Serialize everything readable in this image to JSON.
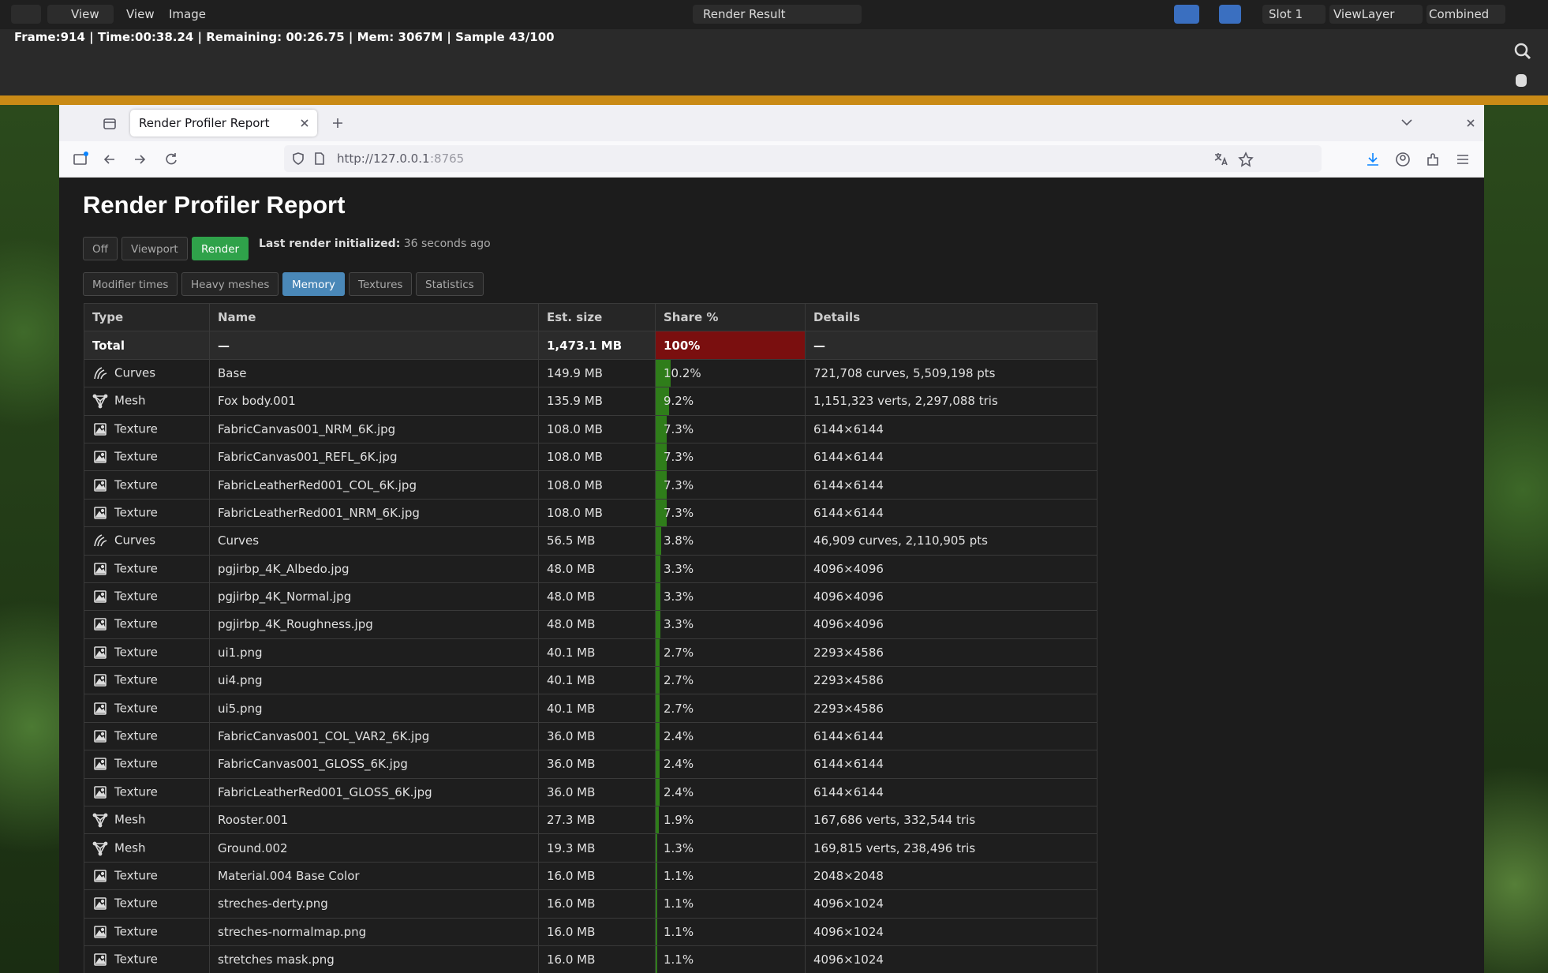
{
  "blender": {
    "menus": [
      "View",
      "View",
      "Image"
    ],
    "image_name": "Render Result",
    "slot": "Slot 1",
    "view_layer": "ViewLayer",
    "pass": "Combined",
    "status": "Frame:914 | Time:00:38.24 | Remaining: 00:26.75 | Mem: 3067M | Sample 43/100"
  },
  "browser": {
    "tab_title": "Render Profiler Report",
    "url_host": "http://127.0.0.1",
    "url_port": ":8765"
  },
  "page": {
    "title": "Render Profiler Report",
    "modes": [
      "Off",
      "Viewport",
      "Render"
    ],
    "active_mode": 2,
    "last_render_label": "Last render initialized:",
    "last_render_value": "36 seconds ago",
    "tabs": [
      "Modifier times",
      "Heavy meshes",
      "Memory",
      "Textures",
      "Statistics"
    ],
    "active_tab": 2
  },
  "table": {
    "headers": [
      "Type",
      "Name",
      "Est. size",
      "Share %",
      "Details"
    ],
    "total": {
      "type": "Total",
      "name": "—",
      "size": "1,473.1 MB",
      "share": 100,
      "share_label": "100%",
      "details": "—"
    },
    "rows": [
      {
        "type": "Curves",
        "name": "Base",
        "size": "149.9 MB",
        "share": 10.2,
        "share_label": "10.2%",
        "details": "721,708 curves, 5,509,198 pts"
      },
      {
        "type": "Mesh",
        "name": "Fox body.001",
        "size": "135.9 MB",
        "share": 9.2,
        "share_label": "9.2%",
        "details": "1,151,323 verts, 2,297,088 tris"
      },
      {
        "type": "Texture",
        "name": "FabricCanvas001_NRM_6K.jpg",
        "size": "108.0 MB",
        "share": 7.3,
        "share_label": "7.3%",
        "details": "6144×6144"
      },
      {
        "type": "Texture",
        "name": "FabricCanvas001_REFL_6K.jpg",
        "size": "108.0 MB",
        "share": 7.3,
        "share_label": "7.3%",
        "details": "6144×6144"
      },
      {
        "type": "Texture",
        "name": "FabricLeatherRed001_COL_6K.jpg",
        "size": "108.0 MB",
        "share": 7.3,
        "share_label": "7.3%",
        "details": "6144×6144"
      },
      {
        "type": "Texture",
        "name": "FabricLeatherRed001_NRM_6K.jpg",
        "size": "108.0 MB",
        "share": 7.3,
        "share_label": "7.3%",
        "details": "6144×6144"
      },
      {
        "type": "Curves",
        "name": "Curves",
        "size": "56.5 MB",
        "share": 3.8,
        "share_label": "3.8%",
        "details": "46,909 curves, 2,110,905 pts"
      },
      {
        "type": "Texture",
        "name": "pgjirbp_4K_Albedo.jpg",
        "size": "48.0 MB",
        "share": 3.3,
        "share_label": "3.3%",
        "details": "4096×4096"
      },
      {
        "type": "Texture",
        "name": "pgjirbp_4K_Normal.jpg",
        "size": "48.0 MB",
        "share": 3.3,
        "share_label": "3.3%",
        "details": "4096×4096"
      },
      {
        "type": "Texture",
        "name": "pgjirbp_4K_Roughness.jpg",
        "size": "48.0 MB",
        "share": 3.3,
        "share_label": "3.3%",
        "details": "4096×4096"
      },
      {
        "type": "Texture",
        "name": "ui1.png",
        "size": "40.1 MB",
        "share": 2.7,
        "share_label": "2.7%",
        "details": "2293×4586"
      },
      {
        "type": "Texture",
        "name": "ui4.png",
        "size": "40.1 MB",
        "share": 2.7,
        "share_label": "2.7%",
        "details": "2293×4586"
      },
      {
        "type": "Texture",
        "name": "ui5.png",
        "size": "40.1 MB",
        "share": 2.7,
        "share_label": "2.7%",
        "details": "2293×4586"
      },
      {
        "type": "Texture",
        "name": "FabricCanvas001_COL_VAR2_6K.jpg",
        "size": "36.0 MB",
        "share": 2.4,
        "share_label": "2.4%",
        "details": "6144×6144"
      },
      {
        "type": "Texture",
        "name": "FabricCanvas001_GLOSS_6K.jpg",
        "size": "36.0 MB",
        "share": 2.4,
        "share_label": "2.4%",
        "details": "6144×6144"
      },
      {
        "type": "Texture",
        "name": "FabricLeatherRed001_GLOSS_6K.jpg",
        "size": "36.0 MB",
        "share": 2.4,
        "share_label": "2.4%",
        "details": "6144×6144"
      },
      {
        "type": "Mesh",
        "name": "Rooster.001",
        "size": "27.3 MB",
        "share": 1.9,
        "share_label": "1.9%",
        "details": "167,686 verts, 332,544 tris"
      },
      {
        "type": "Mesh",
        "name": "Ground.002",
        "size": "19.3 MB",
        "share": 1.3,
        "share_label": "1.3%",
        "details": "169,815 verts, 238,496 tris"
      },
      {
        "type": "Texture",
        "name": "Material.004 Base Color",
        "size": "16.0 MB",
        "share": 1.1,
        "share_label": "1.1%",
        "details": "2048×2048"
      },
      {
        "type": "Texture",
        "name": "streches-derty.png",
        "size": "16.0 MB",
        "share": 1.1,
        "share_label": "1.1%",
        "details": "4096×1024"
      },
      {
        "type": "Texture",
        "name": "streches-normalmap.png",
        "size": "16.0 MB",
        "share": 1.1,
        "share_label": "1.1%",
        "details": "4096×1024"
      },
      {
        "type": "Texture",
        "name": "stretches mask.png",
        "size": "16.0 MB",
        "share": 1.1,
        "share_label": "1.1%",
        "details": "4096×1024"
      }
    ]
  }
}
